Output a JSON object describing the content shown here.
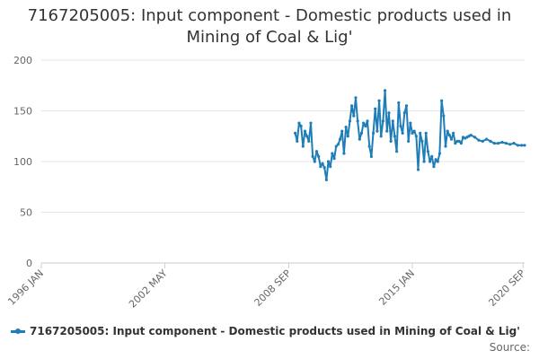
{
  "title_line1": "7167205005: Input component - Domestic products used in",
  "title_line2": "Mining of Coal & Lig'",
  "legend_label": "7167205005: Input component - Domestic products used in Mining of Coal & Lig'",
  "source_label": "Source:",
  "colors": {
    "series": "#1f7db8",
    "grid": "#e6e6e6",
    "axis": "#cccccc"
  },
  "chart_data": {
    "type": "line",
    "title": "7167205005: Input component - Domestic products used in Mining of Coal & Lig'",
    "xlabel": "",
    "ylabel": "",
    "ylim": [
      0,
      200
    ],
    "xlim": [
      1996.0,
      2020.75
    ],
    "yticks": [
      0,
      50,
      100,
      150,
      200
    ],
    "xticks": [
      {
        "label": "1996 JAN",
        "value": 1996.0
      },
      {
        "label": "2002 MAY",
        "value": 2002.33
      },
      {
        "label": "2008 SEP",
        "value": 2008.67
      },
      {
        "label": "2015 JAN",
        "value": 2015.0
      },
      {
        "label": "2020 SEP",
        "value": 2020.67
      }
    ],
    "grid": true,
    "legend": "bottom-left",
    "series": [
      {
        "name": "7167205005: Input component - Domestic products used in Mining of Coal & Lig'",
        "x": [
          2009.0,
          2009.1,
          2009.2,
          2009.3,
          2009.4,
          2009.5,
          2009.6,
          2009.7,
          2009.8,
          2009.9,
          2010.0,
          2010.1,
          2010.2,
          2010.3,
          2010.4,
          2010.5,
          2010.6,
          2010.7,
          2010.8,
          2010.9,
          2011.0,
          2011.1,
          2011.2,
          2011.3,
          2011.4,
          2011.5,
          2011.6,
          2011.7,
          2011.8,
          2011.9,
          2012.0,
          2012.1,
          2012.2,
          2012.3,
          2012.4,
          2012.5,
          2012.6,
          2012.7,
          2012.8,
          2012.9,
          2013.0,
          2013.1,
          2013.2,
          2013.3,
          2013.4,
          2013.5,
          2013.6,
          2013.7,
          2013.8,
          2013.9,
          2014.0,
          2014.1,
          2014.2,
          2014.3,
          2014.4,
          2014.5,
          2014.6,
          2014.7,
          2014.8,
          2014.9,
          2015.0,
          2015.1,
          2015.2,
          2015.3,
          2015.4,
          2015.5,
          2015.6,
          2015.7,
          2015.8,
          2015.9,
          2016.0,
          2016.1,
          2016.2,
          2016.3,
          2016.4,
          2016.5,
          2016.6,
          2016.7,
          2016.8,
          2016.9,
          2017.0,
          2017.1,
          2017.2,
          2017.3,
          2017.4,
          2017.5,
          2017.6,
          2017.7,
          2017.8,
          2017.9,
          2018.0,
          2018.2,
          2018.4,
          2018.6,
          2018.8,
          2019.0,
          2019.2,
          2019.4,
          2019.6,
          2019.8,
          2020.0,
          2020.2,
          2020.4,
          2020.6,
          2020.75
        ],
        "values": [
          128,
          120,
          138,
          135,
          115,
          130,
          125,
          120,
          138,
          105,
          100,
          110,
          105,
          95,
          98,
          94,
          82,
          100,
          95,
          108,
          103,
          115,
          117,
          122,
          130,
          108,
          134,
          125,
          140,
          155,
          145,
          163,
          140,
          122,
          128,
          138,
          135,
          140,
          115,
          105,
          128,
          152,
          130,
          160,
          125,
          140,
          170,
          130,
          148,
          120,
          140,
          125,
          110,
          158,
          135,
          128,
          148,
          155,
          120,
          138,
          128,
          130,
          125,
          92,
          128,
          120,
          100,
          128,
          110,
          100,
          105,
          95,
          102,
          100,
          108,
          160,
          145,
          115,
          130,
          126,
          122,
          128,
          118,
          120,
          120,
          118,
          124,
          123,
          124,
          125,
          126,
          124,
          121,
          120,
          122,
          120,
          118,
          118,
          119,
          118,
          117,
          118,
          116,
          116,
          116
        ]
      }
    ]
  }
}
